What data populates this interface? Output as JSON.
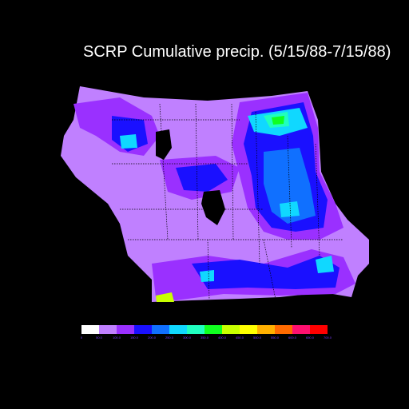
{
  "title": "SCRP Cumulative precip. (5/15/88-7/15/88)",
  "legend": {
    "colors": [
      "#ffffff",
      "#c080ff",
      "#9a30ff",
      "#1a10ff",
      "#1070ff",
      "#10d8ff",
      "#20ffc0",
      "#10ff20",
      "#c8ff00",
      "#ffff00",
      "#ffb000",
      "#ff6a00",
      "#ff1070",
      "#ff0000"
    ],
    "tick_labels": [
      "0",
      "50.0",
      "100.0",
      "150.0",
      "200.0",
      "250.0",
      "300.0",
      "350.0",
      "400.0",
      "450.0",
      "500.0",
      "550.0",
      "600.0",
      "650.0",
      "700.0"
    ]
  }
}
